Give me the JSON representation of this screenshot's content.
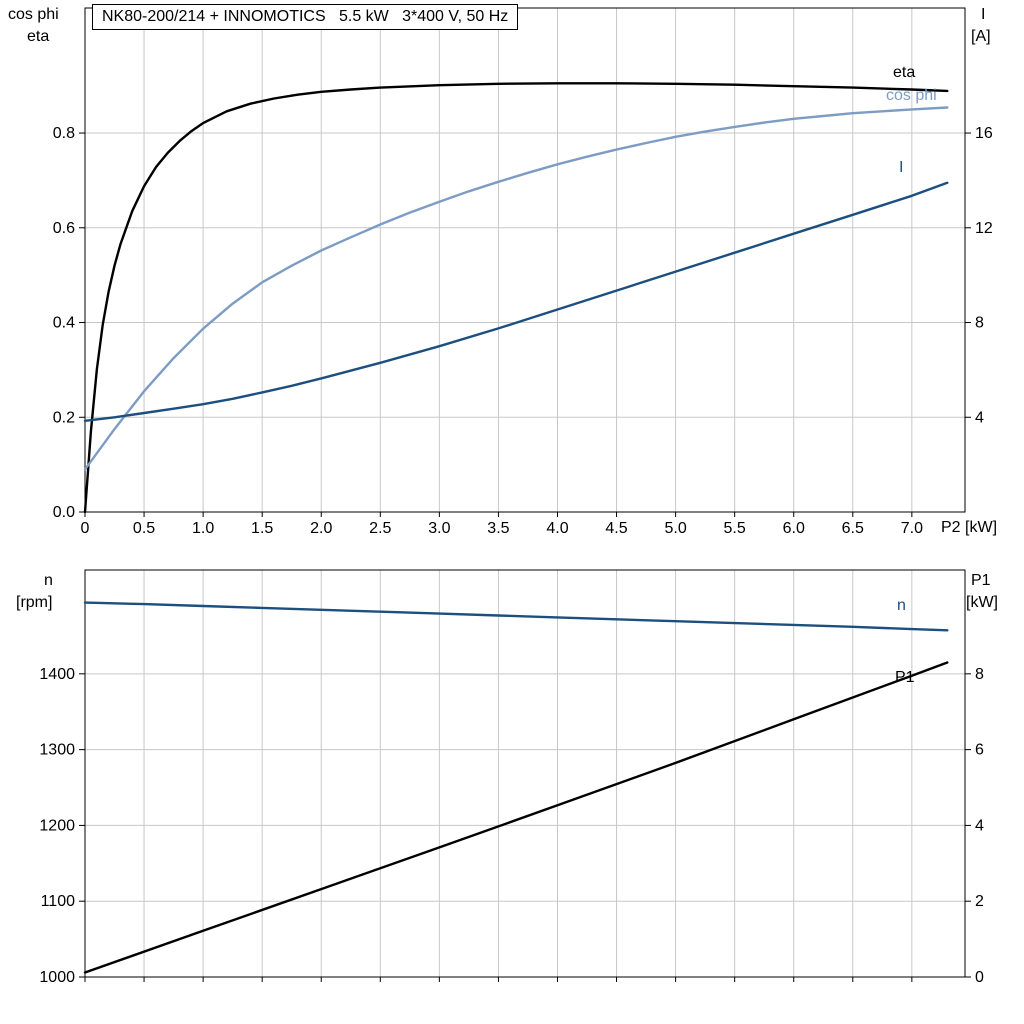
{
  "colors": {
    "black": "#000000",
    "steel": "#7d9cc4",
    "navy": "#1c4f7f",
    "grid": "#c8c8c8",
    "frame": "#000000"
  },
  "chart_data": [
    {
      "type": "line",
      "title": "NK80-200/214 + INNOMOTICS   5.5 kW   3*400 V, 50 Hz",
      "x_axis": {
        "label": "P2 [kW]",
        "min": 0,
        "max": 7.45,
        "ticks": [
          {
            "v": 0,
            "label": "0"
          },
          {
            "v": 0.5,
            "label": "0.5"
          },
          {
            "v": 1.0,
            "label": "1.0"
          },
          {
            "v": 1.5,
            "label": "1.5"
          },
          {
            "v": 2.0,
            "label": "2.0"
          },
          {
            "v": 2.5,
            "label": "2.5"
          },
          {
            "v": 3.0,
            "label": "3.0"
          },
          {
            "v": 3.5,
            "label": "3.5"
          },
          {
            "v": 4.0,
            "label": "4.0"
          },
          {
            "v": 4.5,
            "label": "4.5"
          },
          {
            "v": 5.0,
            "label": "5.0"
          },
          {
            "v": 5.5,
            "label": "5.5"
          },
          {
            "v": 6.0,
            "label": "6.0"
          },
          {
            "v": 6.5,
            "label": "6.5"
          },
          {
            "v": 7.0,
            "label": "7.0"
          }
        ]
      },
      "y_left": {
        "labels": [
          "cos phi",
          "eta"
        ],
        "min": 0,
        "max": 1.064,
        "ticks": [
          {
            "v": 0.0,
            "label": "0.0"
          },
          {
            "v": 0.2,
            "label": "0.2"
          },
          {
            "v": 0.4,
            "label": "0.4"
          },
          {
            "v": 0.6,
            "label": "0.6"
          },
          {
            "v": 0.8,
            "label": "0.8"
          }
        ]
      },
      "y_right": {
        "labels": [
          "I",
          "[A]"
        ],
        "min": 0,
        "max": 21.28,
        "ticks": [
          {
            "v": 4,
            "label": "4"
          },
          {
            "v": 8,
            "label": "8"
          },
          {
            "v": 12,
            "label": "12"
          },
          {
            "v": 16,
            "label": "16"
          }
        ]
      },
      "series": [
        {
          "name": "eta",
          "axis": "left",
          "color_key": "black",
          "points": [
            [
              0,
              0
            ],
            [
              0.05,
              0.17
            ],
            [
              0.1,
              0.3
            ],
            [
              0.15,
              0.395
            ],
            [
              0.2,
              0.465
            ],
            [
              0.25,
              0.52
            ],
            [
              0.3,
              0.565
            ],
            [
              0.4,
              0.635
            ],
            [
              0.5,
              0.688
            ],
            [
              0.6,
              0.728
            ],
            [
              0.7,
              0.758
            ],
            [
              0.8,
              0.783
            ],
            [
              0.9,
              0.804
            ],
            [
              1.0,
              0.821
            ],
            [
              1.2,
              0.846
            ],
            [
              1.4,
              0.862
            ],
            [
              1.6,
              0.873
            ],
            [
              1.8,
              0.881
            ],
            [
              2.0,
              0.887
            ],
            [
              2.25,
              0.892
            ],
            [
              2.5,
              0.896
            ],
            [
              3.0,
              0.901
            ],
            [
              3.5,
              0.904
            ],
            [
              4.0,
              0.905
            ],
            [
              4.5,
              0.905
            ],
            [
              5.0,
              0.904
            ],
            [
              5.5,
              0.902
            ],
            [
              6.0,
              0.899
            ],
            [
              6.5,
              0.896
            ],
            [
              7.0,
              0.892
            ],
            [
              7.3,
              0.889
            ]
          ]
        },
        {
          "name": "cos phi",
          "axis": "left",
          "color_key": "steel",
          "points": [
            [
              0,
              0.09
            ],
            [
              0.25,
              0.175
            ],
            [
              0.5,
              0.255
            ],
            [
              0.75,
              0.325
            ],
            [
              1.0,
              0.387
            ],
            [
              1.25,
              0.44
            ],
            [
              1.5,
              0.485
            ],
            [
              1.75,
              0.52
            ],
            [
              2.0,
              0.552
            ],
            [
              2.25,
              0.58
            ],
            [
              2.5,
              0.607
            ],
            [
              2.75,
              0.632
            ],
            [
              3.0,
              0.655
            ],
            [
              3.25,
              0.677
            ],
            [
              3.5,
              0.697
            ],
            [
              3.75,
              0.716
            ],
            [
              4.0,
              0.734
            ],
            [
              4.25,
              0.75
            ],
            [
              4.5,
              0.765
            ],
            [
              4.75,
              0.779
            ],
            [
              5.0,
              0.792
            ],
            [
              5.25,
              0.803
            ],
            [
              5.5,
              0.813
            ],
            [
              5.75,
              0.822
            ],
            [
              6.0,
              0.83
            ],
            [
              6.25,
              0.836
            ],
            [
              6.5,
              0.842
            ],
            [
              6.75,
              0.846
            ],
            [
              7.0,
              0.85
            ],
            [
              7.3,
              0.854
            ]
          ]
        },
        {
          "name": "I",
          "axis": "right",
          "color_key": "navy",
          "points": [
            [
              0,
              3.85
            ],
            [
              0.25,
              4.0
            ],
            [
              0.5,
              4.18
            ],
            [
              0.75,
              4.36
            ],
            [
              1.0,
              4.55
            ],
            [
              1.25,
              4.78
            ],
            [
              1.5,
              5.05
            ],
            [
              1.75,
              5.33
            ],
            [
              2.0,
              5.64
            ],
            [
              2.5,
              6.3
            ],
            [
              3.0,
              7.0
            ],
            [
              3.5,
              7.75
            ],
            [
              4.0,
              8.55
            ],
            [
              4.5,
              9.35
            ],
            [
              5.0,
              10.15
            ],
            [
              5.5,
              10.95
            ],
            [
              6.0,
              11.75
            ],
            [
              6.5,
              12.55
            ],
            [
              7.0,
              13.35
            ],
            [
              7.3,
              13.9
            ]
          ]
        }
      ]
    },
    {
      "type": "line",
      "x_axis": {
        "label": "",
        "min": 0,
        "max": 7.45,
        "ticks": [
          {
            "v": 0,
            "label": ""
          },
          {
            "v": 0.5,
            "label": ""
          },
          {
            "v": 1.0,
            "label": ""
          },
          {
            "v": 1.5,
            "label": ""
          },
          {
            "v": 2.0,
            "label": ""
          },
          {
            "v": 2.5,
            "label": ""
          },
          {
            "v": 3.0,
            "label": ""
          },
          {
            "v": 3.5,
            "label": ""
          },
          {
            "v": 4.0,
            "label": ""
          },
          {
            "v": 4.5,
            "label": ""
          },
          {
            "v": 5.0,
            "label": ""
          },
          {
            "v": 5.5,
            "label": ""
          },
          {
            "v": 6.0,
            "label": ""
          },
          {
            "v": 6.5,
            "label": ""
          },
          {
            "v": 7.0,
            "label": ""
          }
        ]
      },
      "y_left": {
        "labels": [
          "n",
          "[rpm]"
        ],
        "min": 1000,
        "max": 1537,
        "ticks": [
          {
            "v": 1000,
            "label": "1000"
          },
          {
            "v": 1100,
            "label": "1100"
          },
          {
            "v": 1200,
            "label": "1200"
          },
          {
            "v": 1300,
            "label": "1300"
          },
          {
            "v": 1400,
            "label": "1400"
          }
        ]
      },
      "y_right": {
        "labels": [
          "P1",
          "[kW]"
        ],
        "min": 0,
        "max": 10.74,
        "ticks": [
          {
            "v": 0,
            "label": "0"
          },
          {
            "v": 2,
            "label": "2"
          },
          {
            "v": 4,
            "label": "4"
          },
          {
            "v": 6,
            "label": "6"
          },
          {
            "v": 8,
            "label": "8"
          }
        ]
      },
      "series": [
        {
          "name": "n",
          "axis": "left",
          "color_key": "navy",
          "points": [
            [
              0,
              1494
            ],
            [
              0.5,
              1492
            ],
            [
              1.0,
              1489.5
            ],
            [
              1.5,
              1487
            ],
            [
              2.0,
              1484.5
            ],
            [
              2.5,
              1482
            ],
            [
              3.0,
              1479.5
            ],
            [
              3.5,
              1477
            ],
            [
              4.0,
              1474.5
            ],
            [
              4.5,
              1472
            ],
            [
              5.0,
              1469.5
            ],
            [
              5.5,
              1467
            ],
            [
              6.0,
              1464.5
            ],
            [
              6.5,
              1462
            ],
            [
              7.0,
              1459
            ],
            [
              7.3,
              1457.5
            ]
          ]
        },
        {
          "name": "P1",
          "axis": "right",
          "color_key": "black",
          "points": [
            [
              0,
              0.12
            ],
            [
              1.0,
              1.22
            ],
            [
              2.0,
              2.32
            ],
            [
              3.0,
              3.42
            ],
            [
              4.0,
              4.53
            ],
            [
              5.0,
              5.65
            ],
            [
              6.0,
              6.8
            ],
            [
              7.0,
              7.95
            ],
            [
              7.3,
              8.3
            ]
          ]
        }
      ]
    }
  ]
}
